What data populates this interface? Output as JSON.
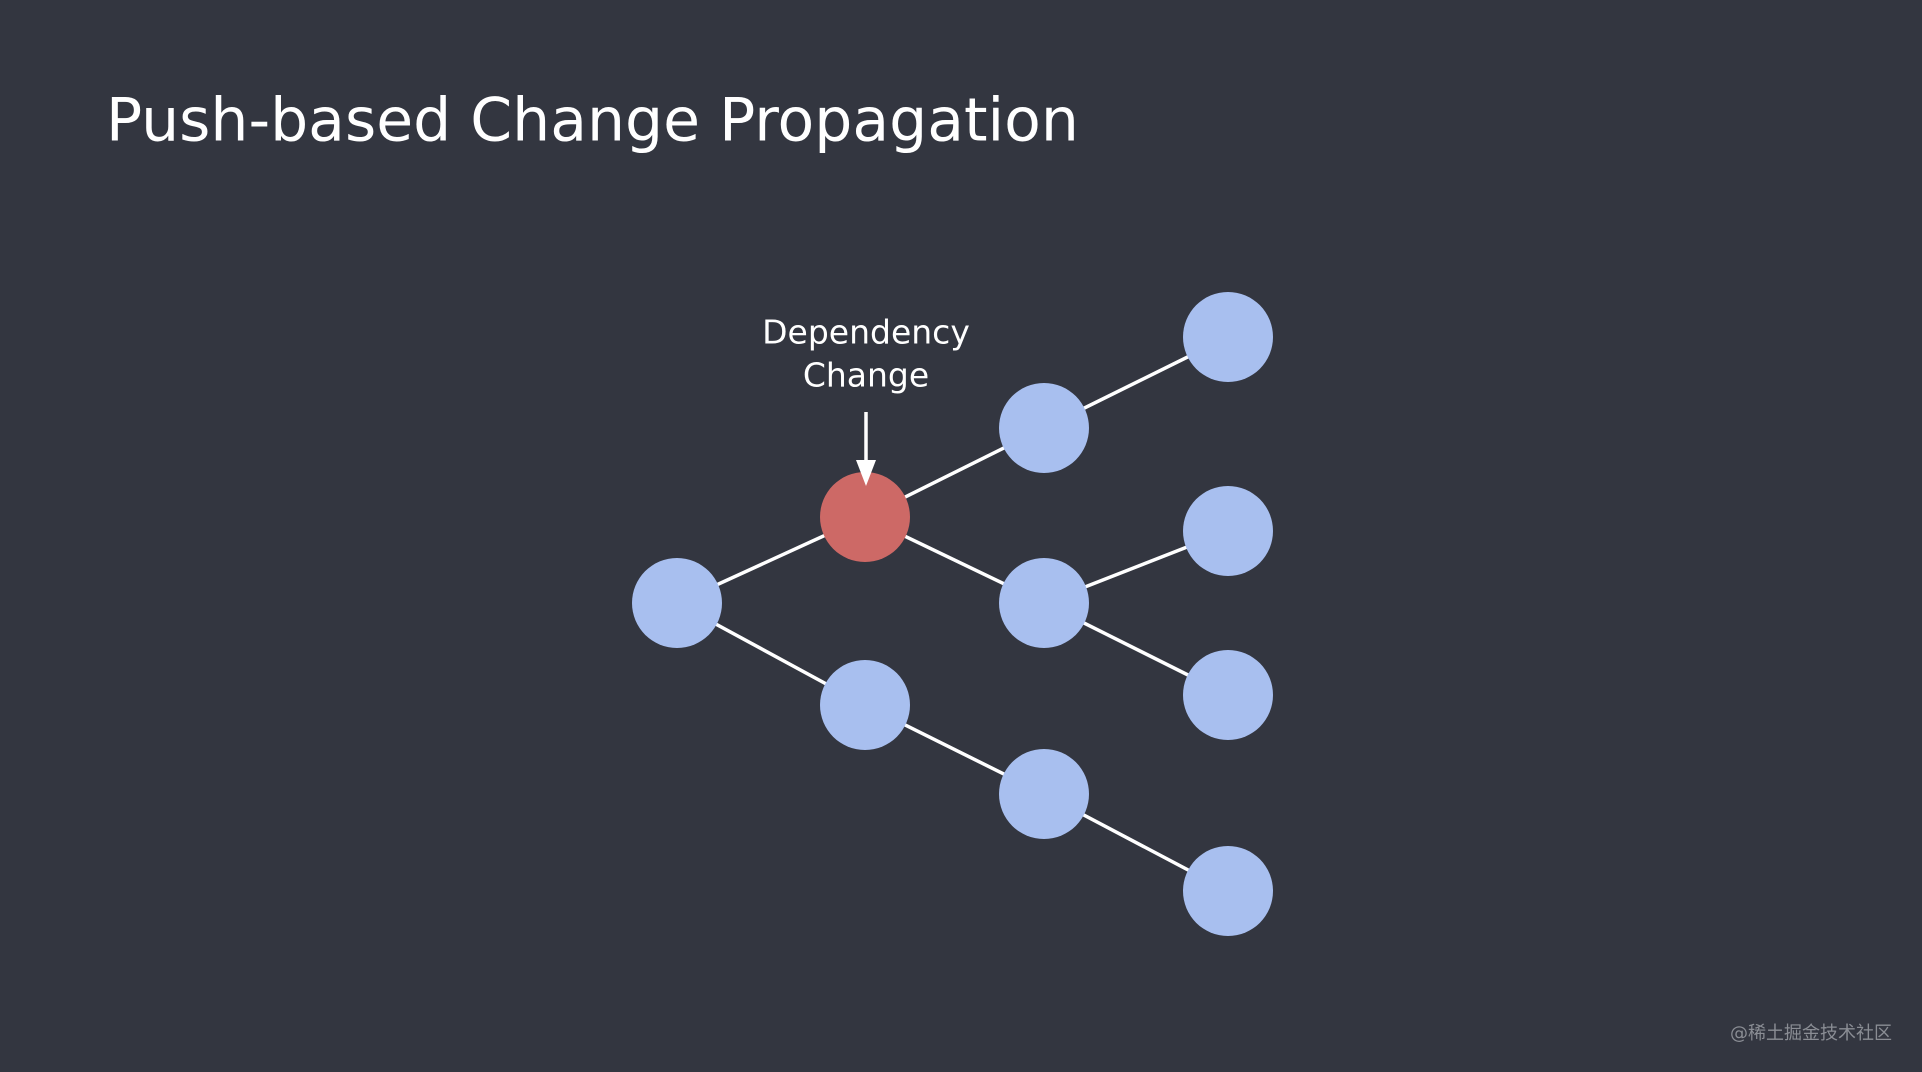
{
  "header": {
    "title": "Push-based Change Propagation"
  },
  "annotation": {
    "lines": [
      "Dependency",
      "Change"
    ]
  },
  "watermark": "@稀土掘金技术社区"
}
